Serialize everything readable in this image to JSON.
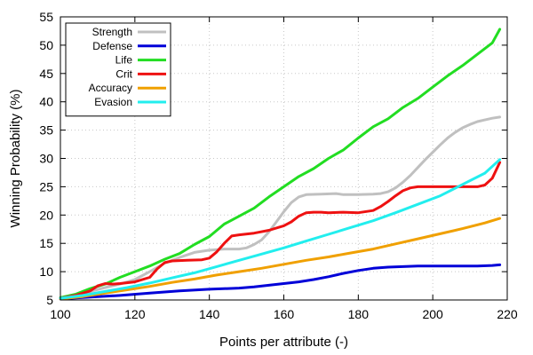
{
  "chart_data": {
    "type": "line",
    "title": "",
    "xlabel": "Points per attribute (-)",
    "ylabel": "Winning Probability (%)",
    "xlim": [
      100,
      220
    ],
    "ylim": [
      5,
      55
    ],
    "xticks": [
      100,
      120,
      140,
      160,
      180,
      200,
      220
    ],
    "yticks": [
      5,
      10,
      15,
      20,
      25,
      30,
      35,
      40,
      45,
      50,
      55
    ],
    "grid": true,
    "legend_position": "top-left",
    "series": [
      {
        "name": "Strength",
        "color": "#c0c0c0",
        "x": [
          100,
          104,
          108,
          112,
          116,
          120,
          124,
          128,
          132,
          136,
          140,
          144,
          148,
          150,
          152,
          154,
          156,
          158,
          160,
          162,
          164,
          166,
          170,
          174,
          176,
          180,
          184,
          186,
          188,
          190,
          192,
          194,
          196,
          198,
          200,
          202,
          204,
          206,
          208,
          210,
          212,
          214,
          216,
          218
        ],
        "y": [
          5.3,
          5.8,
          6.5,
          7.2,
          7.8,
          8.6,
          10.0,
          11.5,
          12.5,
          13.4,
          13.8,
          14.0,
          14.0,
          14.2,
          14.8,
          15.6,
          17.0,
          18.8,
          20.6,
          22.2,
          23.2,
          23.6,
          23.7,
          23.8,
          23.6,
          23.6,
          23.7,
          23.8,
          24.1,
          24.8,
          25.8,
          27.0,
          28.4,
          29.8,
          31.1,
          32.4,
          33.6,
          34.6,
          35.4,
          36.0,
          36.5,
          36.8,
          37.1,
          37.3
        ]
      },
      {
        "name": "Defense",
        "color": "#0000d8",
        "x": [
          100,
          108,
          116,
          124,
          132,
          140,
          148,
          152,
          156,
          160,
          164,
          168,
          172,
          176,
          180,
          184,
          188,
          192,
          196,
          200,
          208,
          212,
          216,
          218
        ],
        "y": [
          5.2,
          5.5,
          5.8,
          6.2,
          6.6,
          6.9,
          7.1,
          7.3,
          7.6,
          7.9,
          8.2,
          8.6,
          9.1,
          9.7,
          10.2,
          10.6,
          10.8,
          10.9,
          11.0,
          11.0,
          11.0,
          11.0,
          11.1,
          11.2
        ]
      },
      {
        "name": "Life",
        "color": "#22dd22",
        "x": [
          100,
          104,
          108,
          112,
          116,
          120,
          124,
          128,
          132,
          136,
          140,
          144,
          148,
          152,
          156,
          160,
          164,
          168,
          172,
          176,
          180,
          184,
          188,
          192,
          196,
          200,
          204,
          208,
          212,
          216,
          218
        ],
        "y": [
          5.4,
          6.0,
          7.0,
          7.8,
          9.0,
          10.0,
          11.0,
          12.2,
          13.2,
          14.8,
          16.2,
          18.4,
          19.8,
          21.2,
          23.2,
          25.0,
          26.8,
          28.2,
          30.0,
          31.5,
          33.6,
          35.6,
          37.0,
          39.0,
          40.6,
          42.6,
          44.6,
          46.4,
          48.4,
          50.4,
          52.8
        ]
      },
      {
        "name": "Crit",
        "color": "#ee1111",
        "x": [
          100,
          104,
          108,
          110,
          112,
          114,
          116,
          120,
          124,
          126,
          128,
          130,
          134,
          138,
          140,
          142,
          144,
          146,
          148,
          152,
          156,
          160,
          162,
          164,
          166,
          168,
          170,
          172,
          176,
          180,
          184,
          186,
          188,
          190,
          192,
          194,
          196,
          198,
          200,
          204,
          208,
          212,
          214,
          216,
          218
        ],
        "y": [
          5.3,
          5.8,
          6.6,
          7.5,
          7.9,
          7.8,
          7.9,
          8.2,
          9.0,
          10.5,
          11.6,
          11.9,
          12.0,
          12.1,
          12.4,
          13.5,
          15.0,
          16.3,
          16.5,
          16.8,
          17.3,
          18.1,
          18.8,
          19.8,
          20.4,
          20.5,
          20.5,
          20.4,
          20.5,
          20.4,
          20.8,
          21.5,
          22.4,
          23.4,
          24.3,
          24.8,
          25.0,
          25.0,
          25.0,
          25.0,
          25.0,
          25.0,
          25.3,
          26.5,
          29.3
        ]
      },
      {
        "name": "Accuracy",
        "color": "#f0a000",
        "x": [
          100,
          106,
          112,
          118,
          124,
          130,
          136,
          142,
          148,
          154,
          160,
          166,
          172,
          178,
          184,
          190,
          196,
          202,
          208,
          214,
          218
        ],
        "y": [
          5.2,
          5.6,
          6.2,
          6.8,
          7.4,
          8.1,
          8.7,
          9.4,
          10.0,
          10.6,
          11.3,
          12.0,
          12.6,
          13.3,
          14.0,
          14.9,
          15.8,
          16.7,
          17.6,
          18.6,
          19.4
        ]
      },
      {
        "name": "Evasion",
        "color": "#22eeee",
        "x": [
          100,
          106,
          112,
          118,
          124,
          130,
          136,
          142,
          148,
          154,
          160,
          166,
          172,
          178,
          184,
          190,
          196,
          202,
          208,
          214,
          218
        ],
        "y": [
          5.3,
          5.8,
          6.5,
          7.2,
          8.0,
          8.9,
          9.8,
          10.9,
          12.0,
          13.1,
          14.2,
          15.4,
          16.6,
          17.8,
          19.0,
          20.4,
          21.9,
          23.4,
          25.4,
          27.4,
          29.8
        ]
      }
    ]
  }
}
